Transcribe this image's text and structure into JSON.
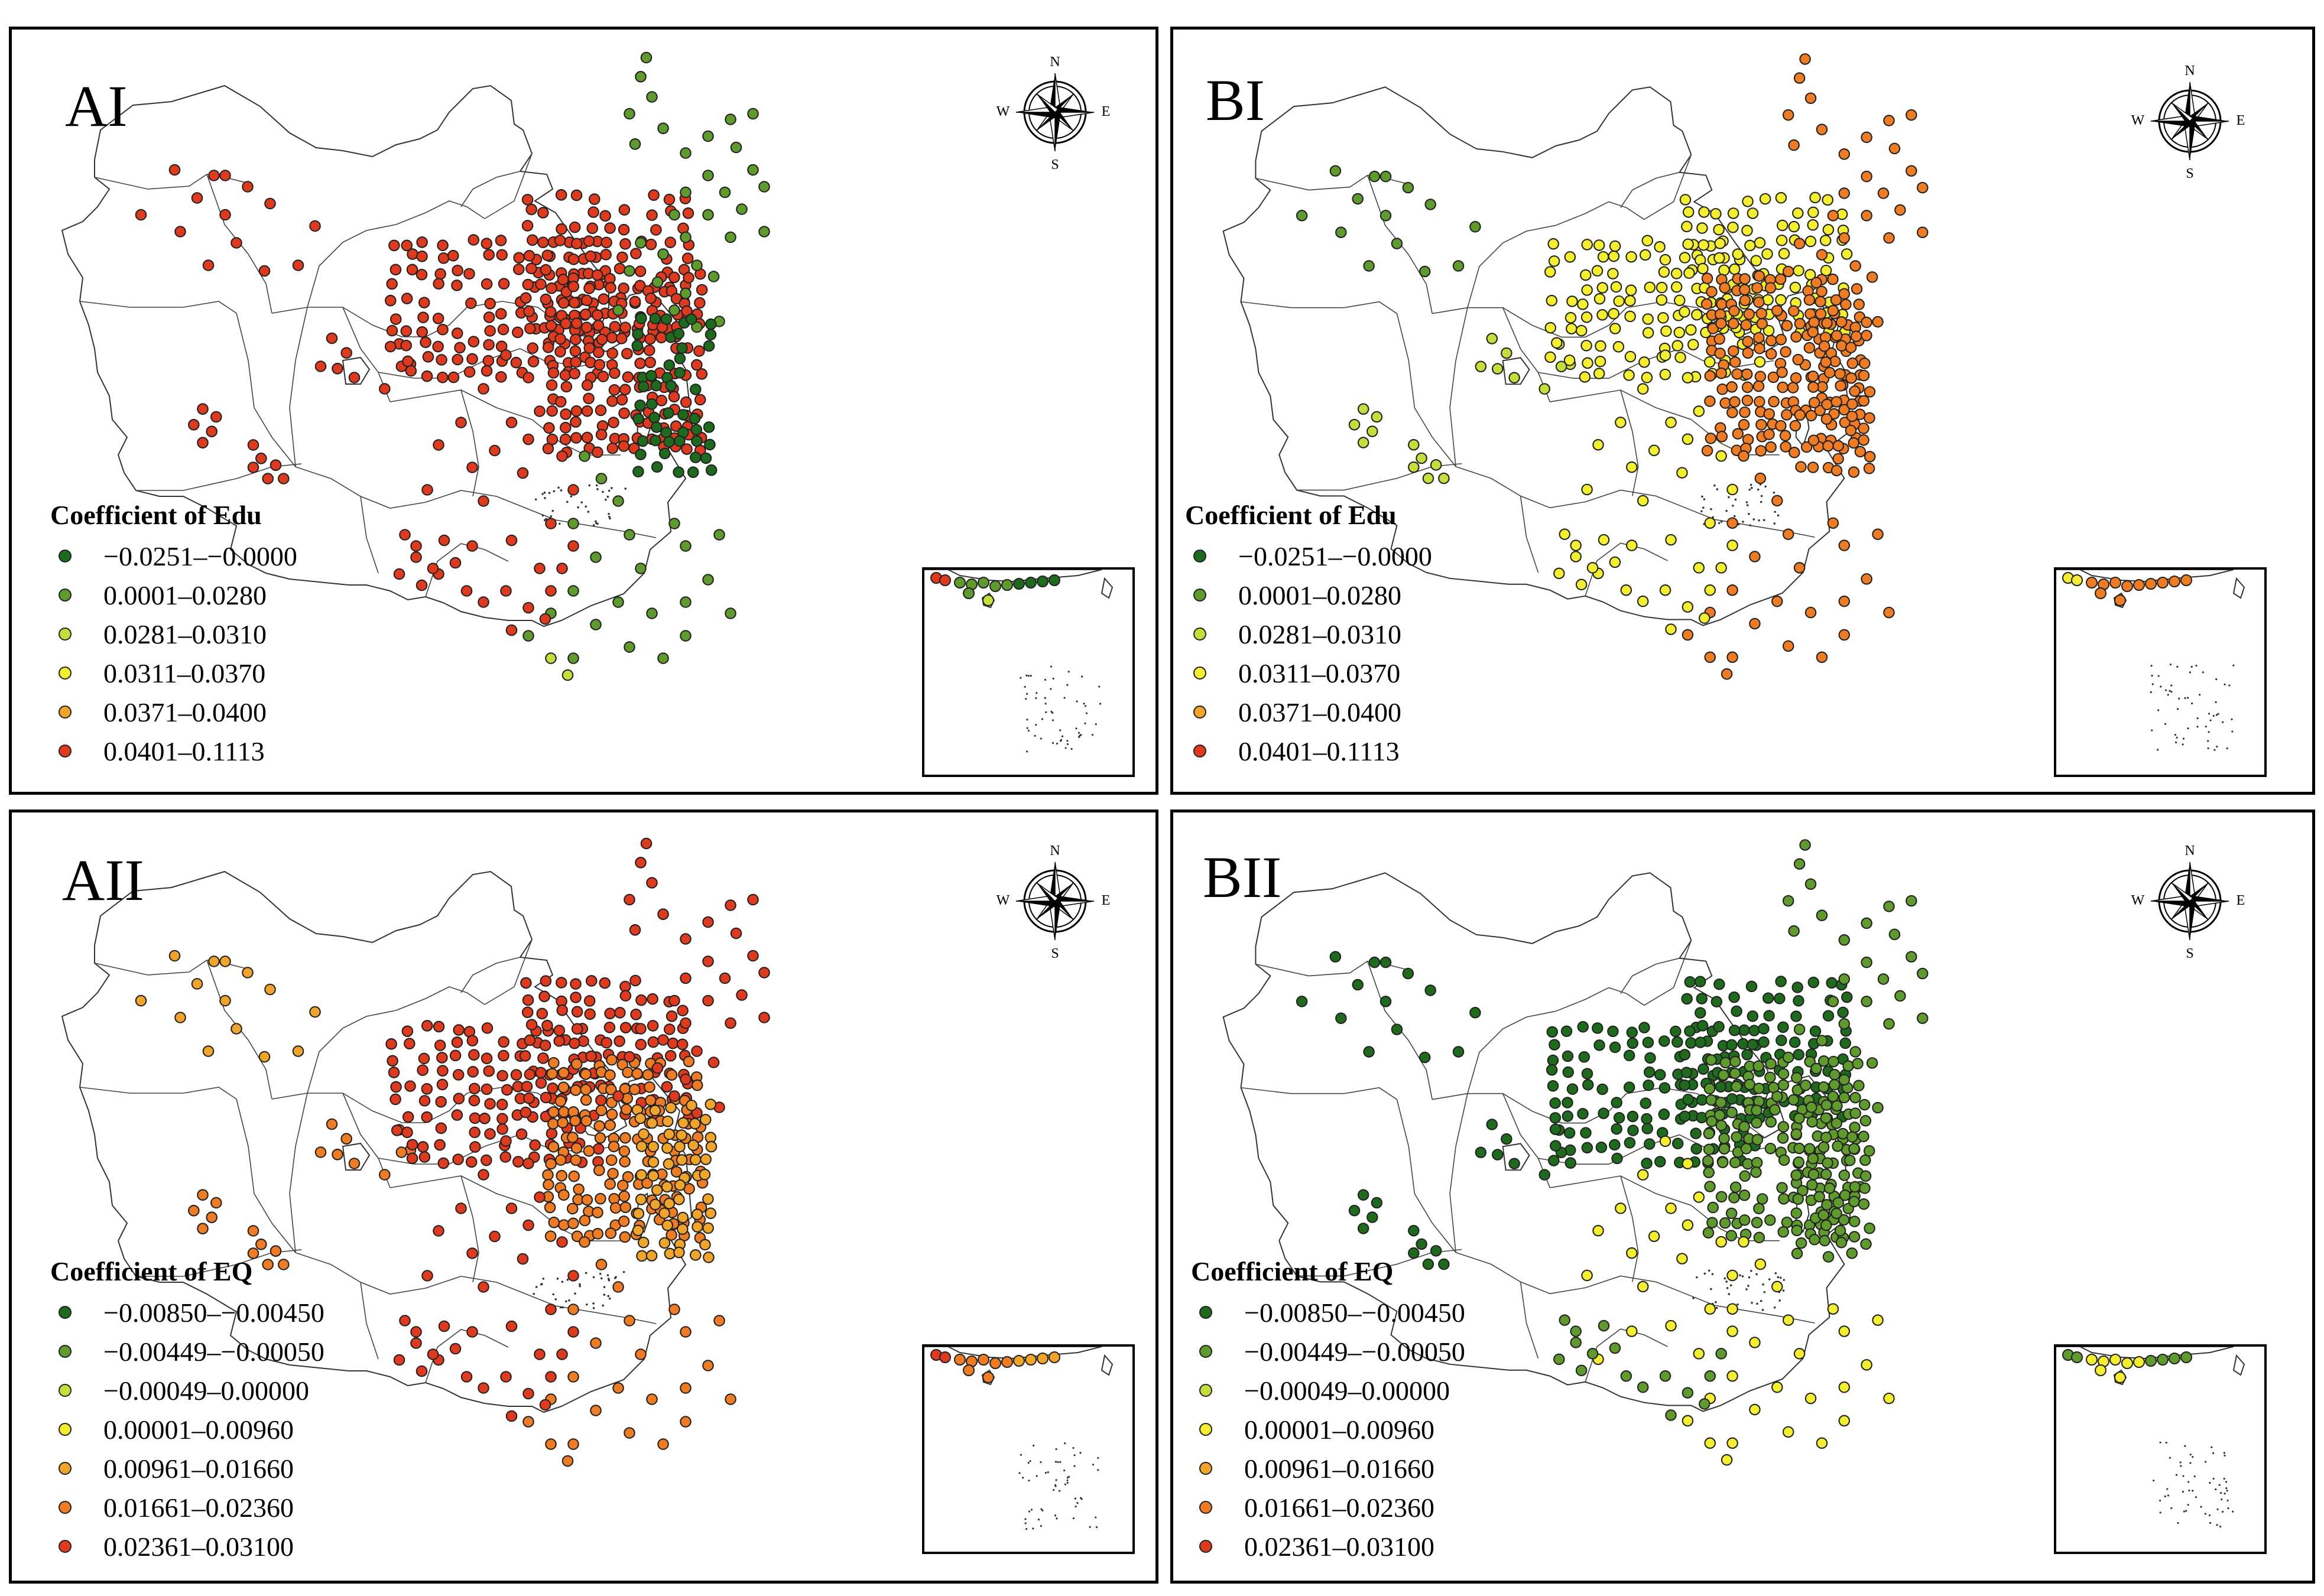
{
  "colors": {
    "dark_green": "#1e6b1e",
    "green": "#5f9a2c",
    "yellow_green": "#c6dd3a",
    "yellow": "#f3ee2e",
    "orange": "#f0a52a",
    "dark_orange": "#ef7b22",
    "red": "#e03a1e"
  },
  "compass": {
    "n": "N",
    "s": "S",
    "e": "E",
    "w": "W"
  },
  "panels": [
    {
      "id": "AI",
      "label": "AI",
      "legend_title": "Coefficient of Edu",
      "legend": [
        {
          "label": "−0.0251–−0.0000",
          "color": "#1e6b1e"
        },
        {
          "label": "0.0001–0.0280",
          "color": "#5f9a2c"
        },
        {
          "label": "0.0281–0.0310",
          "color": "#c6dd3a"
        },
        {
          "label": "0.0311–0.0370",
          "color": "#f3ee2e"
        },
        {
          "label": "0.0371–0.0400",
          "color": "#f0a52a"
        },
        {
          "label": "0.0401–0.1113",
          "color": "#e03a1e"
        }
      ],
      "regions": {
        "west": "#e03a1e",
        "northwest": "#e03a1e",
        "tibet": "#e03a1e",
        "north_belt": "#e03a1e",
        "north_china_plain": "#e03a1e",
        "northeast": "#5f9a2c",
        "east_coast": "#1e6b1e",
        "central": "#e03a1e",
        "south": "#5f9a2c",
        "southwest": "#e03a1e",
        "hainan": "#c6dd3a"
      }
    },
    {
      "id": "BI",
      "label": "BI",
      "legend_title": "Coefficient of Edu",
      "legend": [
        {
          "label": "−0.0251–−0.0000",
          "color": "#1e6b1e"
        },
        {
          "label": "0.0001–0.0280",
          "color": "#5f9a2c"
        },
        {
          "label": "0.0281–0.0310",
          "color": "#c6dd3a"
        },
        {
          "label": "0.0311–0.0370",
          "color": "#f3ee2e"
        },
        {
          "label": "0.0371–0.0400",
          "color": "#f0a52a"
        },
        {
          "label": "0.0401–0.1113",
          "color": "#e03a1e"
        }
      ],
      "regions": {
        "west": "#5f9a2c",
        "northwest": "#c6dd3a",
        "tibet": "#c6dd3a",
        "north_belt": "#f3ee2e",
        "north_china_plain": "#ef7b22",
        "northeast": "#ef7b22",
        "east_coast": "#ef7b22",
        "central": "#f3ee2e",
        "south": "#ef7b22",
        "southwest": "#f3ee2e",
        "hainan": "#ef7b22"
      }
    },
    {
      "id": "AII",
      "label": "AII",
      "legend_title": "Coefficient of EQ",
      "legend": [
        {
          "label": "−0.00850–−0.00450",
          "color": "#1e6b1e"
        },
        {
          "label": "−0.00449–−0.00050",
          "color": "#5f9a2c"
        },
        {
          "label": "−0.00049–0.00000",
          "color": "#c6dd3a"
        },
        {
          "label": "0.00001–0.00960",
          "color": "#f3ee2e"
        },
        {
          "label": "0.00961–0.01660",
          "color": "#f0a52a"
        },
        {
          "label": "0.01661–0.02360",
          "color": "#ef7b22"
        },
        {
          "label": "0.02361–0.03100",
          "color": "#e03a1e"
        }
      ],
      "regions": {
        "west": "#f0a52a",
        "northwest": "#ef7b22",
        "tibet": "#ef7b22",
        "north_belt": "#e03a1e",
        "north_china_plain": "#ef7b22",
        "northeast": "#e03a1e",
        "east_coast": "#f0a52a",
        "central": "#e03a1e",
        "south": "#ef7b22",
        "southwest": "#e03a1e",
        "hainan": "#ef7b22"
      }
    },
    {
      "id": "BII",
      "label": "BII",
      "legend_title": "Coefficient of EQ",
      "legend": [
        {
          "label": "−0.00850–−0.00450",
          "color": "#1e6b1e"
        },
        {
          "label": "−0.00449–−0.00050",
          "color": "#5f9a2c"
        },
        {
          "label": "−0.00049–0.00000",
          "color": "#c6dd3a"
        },
        {
          "label": "0.00001–0.00960",
          "color": "#f3ee2e"
        },
        {
          "label": "0.00961–0.01660",
          "color": "#f0a52a"
        },
        {
          "label": "0.01661–0.02360",
          "color": "#ef7b22"
        },
        {
          "label": "0.02361–0.03100",
          "color": "#e03a1e"
        }
      ],
      "regions": {
        "west": "#1e6b1e",
        "northwest": "#1e6b1e",
        "tibet": "#1e6b1e",
        "north_belt": "#1e6b1e",
        "north_china_plain": "#5f9a2c",
        "northeast": "#5f9a2c",
        "east_coast": "#5f9a2c",
        "central": "#f3ee2e",
        "south": "#f3ee2e",
        "southwest": "#5f9a2c",
        "hainan": "#f3ee2e"
      }
    }
  ]
}
